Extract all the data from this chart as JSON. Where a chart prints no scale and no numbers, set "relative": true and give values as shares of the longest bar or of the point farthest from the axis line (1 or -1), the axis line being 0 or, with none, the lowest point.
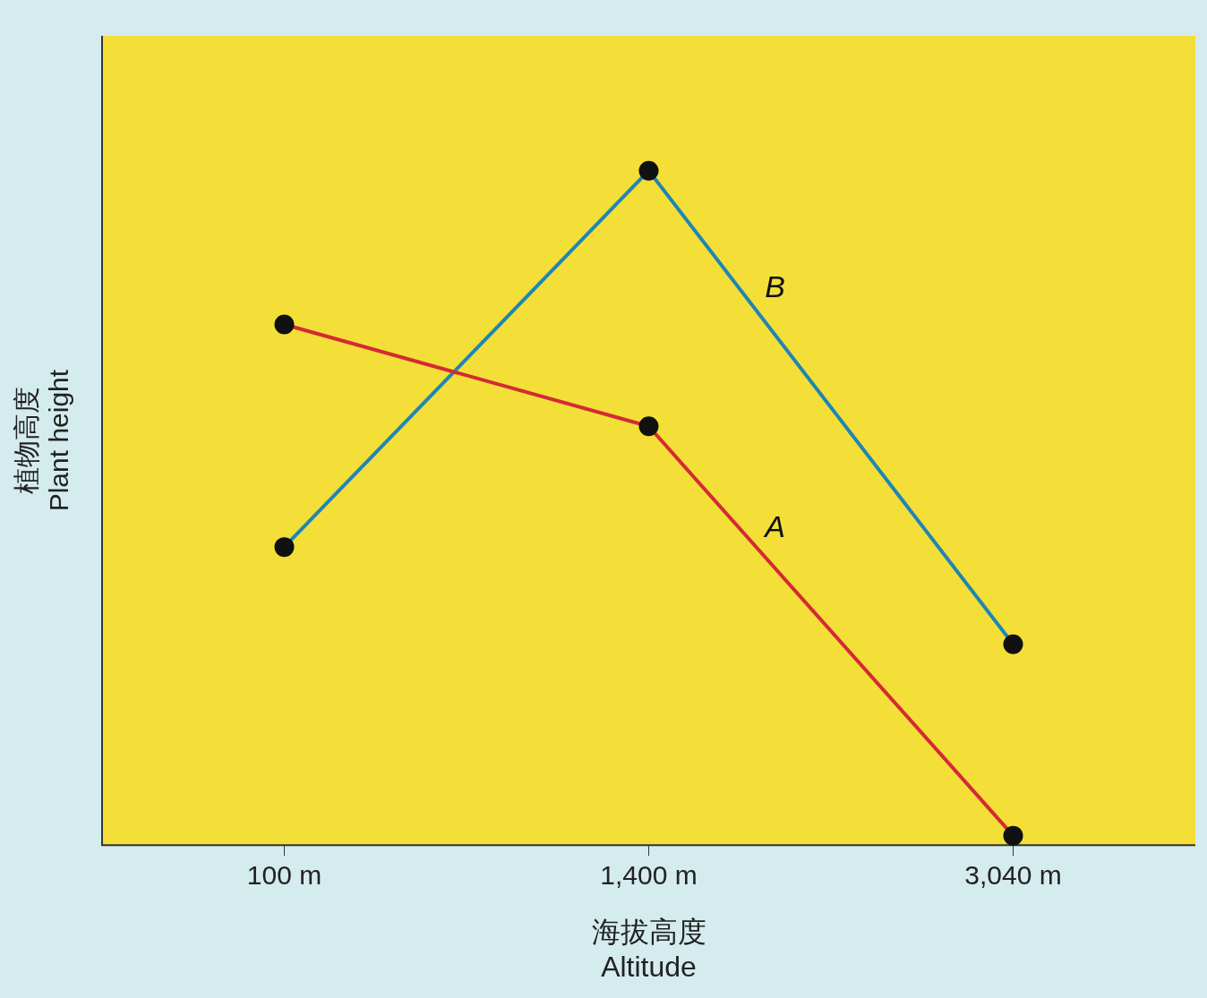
{
  "chart_data": {
    "type": "line",
    "xlabel": "海拔高度\nAltitude",
    "ylabel": "植物高度\nPlant height",
    "categories": [
      "100 m",
      "1,400 m",
      "3,040 m"
    ],
    "relative": true,
    "marker": "circle",
    "line_style": "solid",
    "legend": false,
    "series": [
      {
        "name": "A",
        "color": "#d42a34",
        "values": [
          0.772,
          0.621,
          0.014
        ]
      },
      {
        "name": "B",
        "color": "#1f86b4",
        "values": [
          0.442,
          1,
          0.298
        ]
      }
    ]
  }
}
